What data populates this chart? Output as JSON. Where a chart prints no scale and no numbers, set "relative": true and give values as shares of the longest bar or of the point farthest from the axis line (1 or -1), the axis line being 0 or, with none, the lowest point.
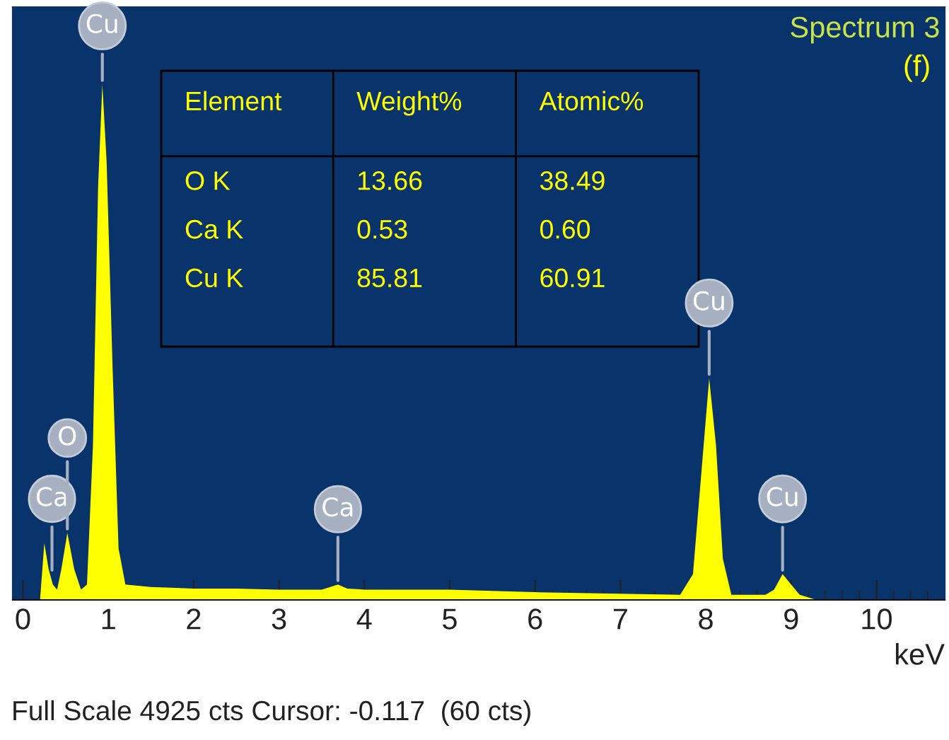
{
  "chart_data": {
    "type": "area",
    "title": "Spectrum 3",
    "subtitle": "(f)",
    "xlabel": "keV",
    "relative": true,
    "color": "#ffff00",
    "x": [
      0.1,
      0.2,
      0.25,
      0.3,
      0.35,
      0.4,
      0.45,
      0.52,
      0.6,
      0.68,
      0.75,
      0.82,
      0.88,
      0.93,
      0.98,
      1.05,
      1.12,
      1.2,
      1.5,
      2,
      2.5,
      3,
      3.5,
      3.6,
      3.69,
      3.8,
      4,
      5,
      6,
      7,
      7.7,
      7.85,
      7.95,
      8.04,
      8.12,
      8.2,
      8.3,
      8.7,
      8.8,
      8.9,
      9.0,
      9.1,
      9.3
    ],
    "values": [
      0,
      0,
      0.11,
      0.06,
      0.03,
      0.02,
      0.06,
      0.13,
      0.06,
      0.02,
      0.03,
      0.3,
      0.8,
      1.0,
      0.85,
      0.45,
      0.1,
      0.03,
      0.025,
      0.022,
      0.022,
      0.02,
      0.02,
      0.025,
      0.03,
      0.022,
      0.02,
      0.02,
      0.015,
      0.012,
      0.01,
      0.05,
      0.25,
      0.43,
      0.3,
      0.08,
      0.01,
      0.01,
      0.02,
      0.05,
      0.03,
      0.01,
      0
    ],
    "xlim": [
      -0.12,
      10.8
    ],
    "xticks": [
      0,
      1,
      2,
      3,
      4,
      5,
      6,
      7,
      8,
      9,
      10
    ],
    "grid": false,
    "annotations": [
      "Full Scale 4925 cts Cursor: -0.117  (60 cts)",
      "Element",
      "Weight%",
      "Atomic%",
      "O K",
      "13.66",
      "38.49",
      "Ca K",
      "0.53",
      "0.60",
      "Cu K",
      "85.81",
      "60.91",
      {
        "text": "Ca",
        "x": 0.34,
        "y": 0.05
      },
      {
        "text": "O",
        "x": 0.52,
        "y": 0.13
      },
      {
        "text": "Cu",
        "x": 0.93,
        "y": 1.0
      },
      {
        "text": "Ca",
        "x": 3.69,
        "y": 0.03
      },
      {
        "text": "Cu",
        "x": 8.04,
        "y": 0.43
      },
      {
        "text": "Cu",
        "x": 8.9,
        "y": 0.05
      }
    ]
  }
}
